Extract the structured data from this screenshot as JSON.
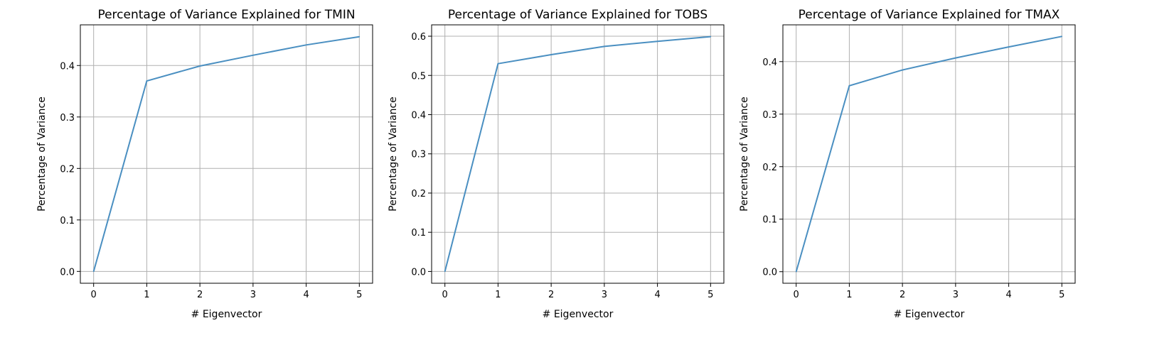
{
  "chart_data": [
    {
      "type": "line",
      "title": "Percentage of Variance Explained for TMIN",
      "xlabel": "# Eigenvector",
      "ylabel": "Percentage of Variance",
      "x": [
        0,
        1,
        2,
        3,
        4,
        5
      ],
      "series": [
        {
          "values": [
            0.0,
            0.37,
            0.399,
            0.42,
            0.44,
            0.456
          ]
        }
      ],
      "xlim": [
        -0.25,
        5.25
      ],
      "ylim": [
        -0.023,
        0.479
      ],
      "xticks": [
        0,
        1,
        2,
        3,
        4,
        5
      ],
      "yticks": [
        0.0,
        0.1,
        0.2,
        0.3,
        0.4
      ],
      "ytick_labels": [
        "0.0",
        "0.1",
        "0.2",
        "0.3",
        "0.4"
      ],
      "grid": true,
      "line_color": "#4a8fc1"
    },
    {
      "type": "line",
      "title": "Percentage of Variance Explained for TOBS",
      "xlabel": "# Eigenvector",
      "ylabel": "Percentage of Variance",
      "x": [
        0,
        1,
        2,
        3,
        4,
        5
      ],
      "series": [
        {
          "values": [
            0.0,
            0.53,
            0.553,
            0.574,
            0.587,
            0.599
          ]
        }
      ],
      "xlim": [
        -0.25,
        5.25
      ],
      "ylim": [
        -0.03,
        0.629
      ],
      "xticks": [
        0,
        1,
        2,
        3,
        4,
        5
      ],
      "yticks": [
        0.0,
        0.1,
        0.2,
        0.3,
        0.4,
        0.5,
        0.6
      ],
      "ytick_labels": [
        "0.0",
        "0.1",
        "0.2",
        "0.3",
        "0.4",
        "0.5",
        "0.6"
      ],
      "grid": true,
      "line_color": "#4a8fc1"
    },
    {
      "type": "line",
      "title": "Percentage of Variance Explained for TMAX",
      "xlabel": "# Eigenvector",
      "ylabel": "Percentage of Variance",
      "x": [
        0,
        1,
        2,
        3,
        4,
        5
      ],
      "series": [
        {
          "values": [
            0.0,
            0.354,
            0.384,
            0.407,
            0.428,
            0.448
          ]
        }
      ],
      "xlim": [
        -0.25,
        5.25
      ],
      "ylim": [
        -0.022,
        0.47
      ],
      "xticks": [
        0,
        1,
        2,
        3,
        4,
        5
      ],
      "yticks": [
        0.0,
        0.1,
        0.2,
        0.3,
        0.4
      ],
      "ytick_labels": [
        "0.0",
        "0.1",
        "0.2",
        "0.3",
        "0.4"
      ],
      "grid": true,
      "line_color": "#4a8fc1"
    }
  ]
}
